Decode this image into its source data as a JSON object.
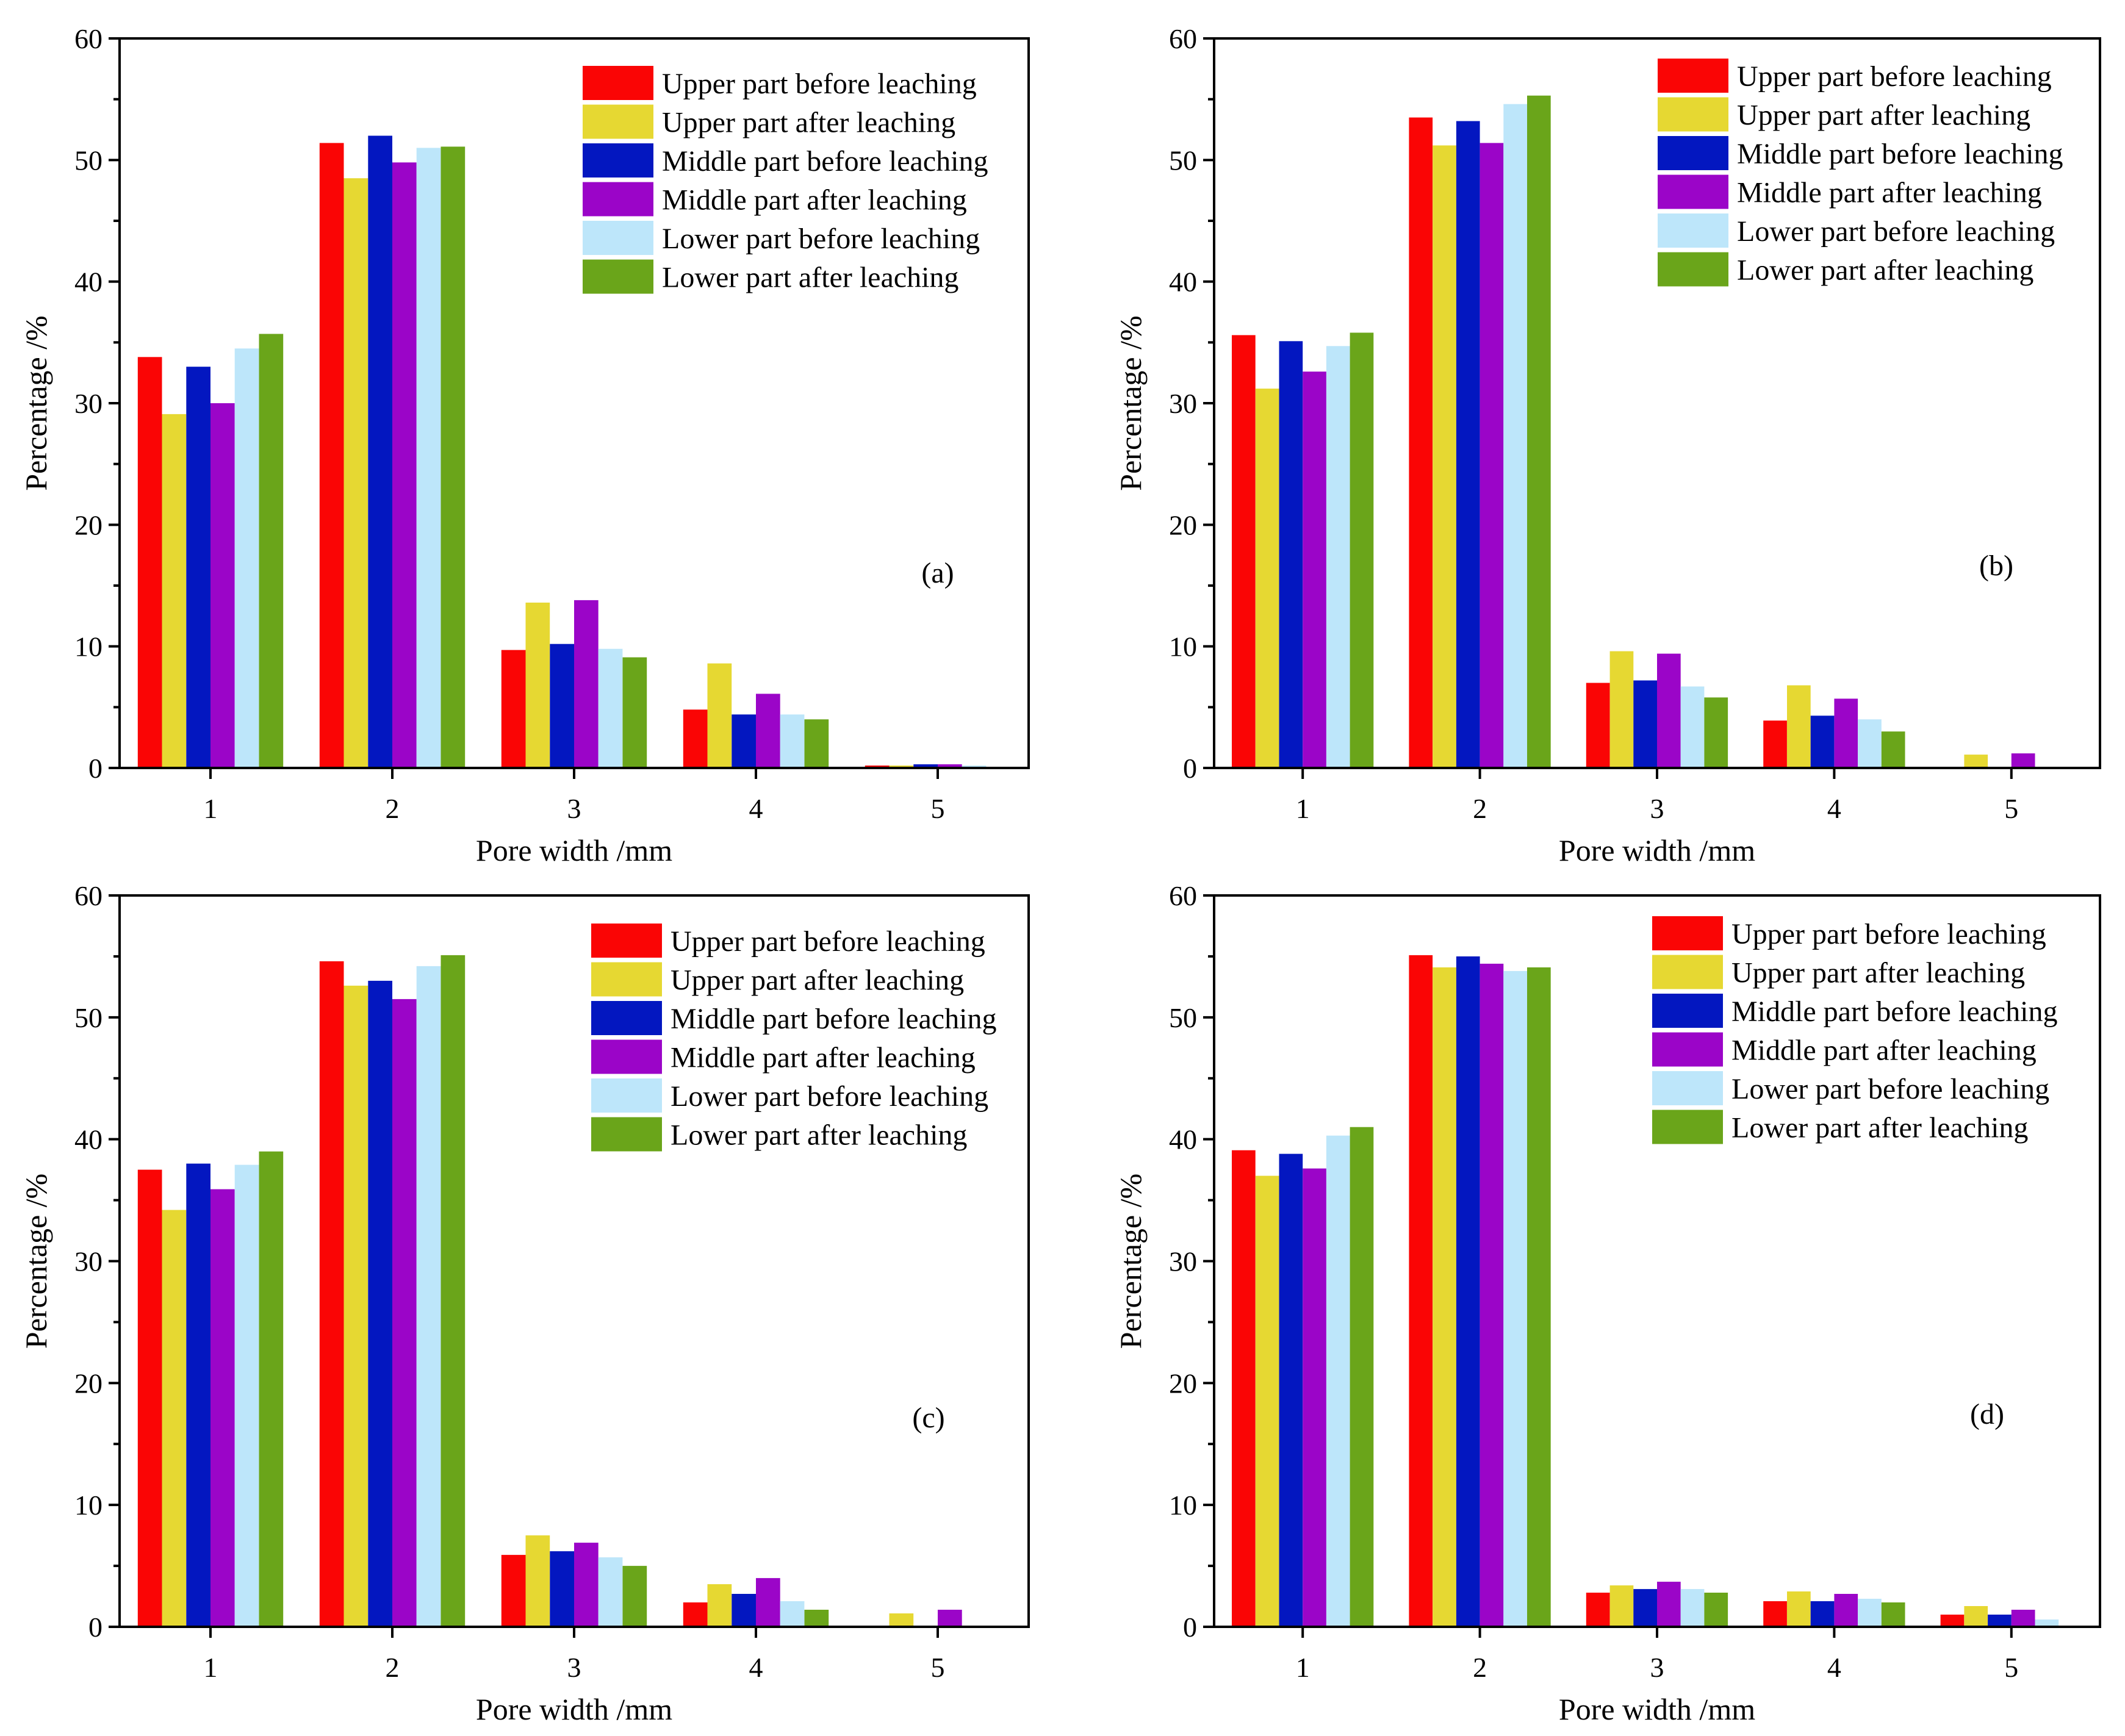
{
  "figure": {
    "series_names": [
      "Upper part before leaching",
      "Upper part after leaching",
      "Middle part before leaching",
      "Middle part after leaching",
      "Lower part before leaching",
      "Lower part after leaching"
    ],
    "series_colors": [
      "#fa0505",
      "#e6d832",
      "#0317c0",
      "#9b05c8",
      "#bde6fa",
      "#6aa51a"
    ]
  },
  "chart_data": [
    {
      "type": "bar",
      "panel_label": "(a)",
      "xlabel": "Pore width /mm",
      "ylabel": "Percentage /%",
      "categories": [
        "1",
        "2",
        "3",
        "4",
        "5"
      ],
      "ylim": [
        0,
        60
      ],
      "yticks": [
        "0",
        "10",
        "20",
        "30",
        "40",
        "50",
        "60"
      ],
      "legend_position": "top-right",
      "series": [
        {
          "name": "Upper part before leaching",
          "values": [
            33.8,
            51.4,
            9.7,
            4.8,
            0.2
          ]
        },
        {
          "name": "Upper part after leaching",
          "values": [
            29.1,
            48.5,
            13.6,
            8.6,
            0.2
          ]
        },
        {
          "name": "Middle part before leaching",
          "values": [
            33.0,
            52.0,
            10.2,
            4.4,
            0.3
          ]
        },
        {
          "name": "Middle part after leaching",
          "values": [
            30.0,
            49.8,
            13.8,
            6.1,
            0.3
          ]
        },
        {
          "name": "Lower part before leaching",
          "values": [
            34.5,
            51.0,
            9.8,
            4.4,
            0.2
          ]
        },
        {
          "name": "Lower part after leaching",
          "values": [
            35.7,
            51.1,
            9.1,
            4.0,
            0.1
          ]
        }
      ]
    },
    {
      "type": "bar",
      "panel_label": "(b)",
      "xlabel": "Pore width /mm",
      "ylabel": "Percentage /%",
      "categories": [
        "1",
        "2",
        "3",
        "4",
        "5"
      ],
      "ylim": [
        0,
        60
      ],
      "yticks": [
        "0",
        "10",
        "20",
        "30",
        "40",
        "50",
        "60"
      ],
      "legend_position": "top-right",
      "series": [
        {
          "name": "Upper part before leaching",
          "values": [
            35.6,
            53.5,
            7.0,
            3.9,
            0.0
          ]
        },
        {
          "name": "Upper part after leaching",
          "values": [
            31.2,
            51.2,
            9.6,
            6.8,
            1.1
          ]
        },
        {
          "name": "Middle part before leaching",
          "values": [
            35.1,
            53.2,
            7.2,
            4.3,
            0.0
          ]
        },
        {
          "name": "Middle part after leaching",
          "values": [
            32.6,
            51.4,
            9.4,
            5.7,
            1.2
          ]
        },
        {
          "name": "Lower part before leaching",
          "values": [
            34.7,
            54.6,
            6.7,
            4.0,
            0.0
          ]
        },
        {
          "name": "Lower part after leaching",
          "values": [
            35.8,
            55.3,
            5.8,
            3.0,
            0.0
          ]
        }
      ]
    },
    {
      "type": "bar",
      "panel_label": "(c)",
      "xlabel": "Pore width /mm",
      "ylabel": "Percentage /%",
      "categories": [
        "1",
        "2",
        "3",
        "4",
        "5"
      ],
      "ylim": [
        0,
        60
      ],
      "yticks": [
        "0",
        "10",
        "20",
        "30",
        "40",
        "50",
        "60"
      ],
      "legend_position": "top-right",
      "series": [
        {
          "name": "Upper part before leaching",
          "values": [
            37.5,
            54.6,
            5.9,
            2.0,
            0.0
          ]
        },
        {
          "name": "Upper part after leaching",
          "values": [
            34.2,
            52.6,
            7.5,
            3.5,
            1.1
          ]
        },
        {
          "name": "Middle part before leaching",
          "values": [
            38.0,
            53.0,
            6.2,
            2.7,
            0.0
          ]
        },
        {
          "name": "Middle part after leaching",
          "values": [
            35.9,
            51.5,
            6.9,
            4.0,
            1.4
          ]
        },
        {
          "name": "Lower part before leaching",
          "values": [
            37.9,
            54.2,
            5.7,
            2.1,
            0.0
          ]
        },
        {
          "name": "Lower part after leaching",
          "values": [
            39.0,
            55.1,
            5.0,
            1.4,
            0.0
          ]
        }
      ]
    },
    {
      "type": "bar",
      "panel_label": "(d)",
      "xlabel": "Pore width /mm",
      "ylabel": "Percentage /%",
      "categories": [
        "1",
        "2",
        "3",
        "4",
        "5"
      ],
      "ylim": [
        0,
        60
      ],
      "yticks": [
        "0",
        "10",
        "20",
        "30",
        "40",
        "50",
        "60"
      ],
      "legend_position": "top-right",
      "series": [
        {
          "name": "Upper part before leaching",
          "values": [
            39.1,
            55.1,
            2.8,
            2.1,
            1.0
          ]
        },
        {
          "name": "Upper part after leaching",
          "values": [
            37.0,
            54.1,
            3.4,
            2.9,
            1.7
          ]
        },
        {
          "name": "Middle part before leaching",
          "values": [
            38.8,
            55.0,
            3.1,
            2.1,
            1.0
          ]
        },
        {
          "name": "Middle part after leaching",
          "values": [
            37.6,
            54.4,
            3.7,
            2.7,
            1.4
          ]
        },
        {
          "name": "Lower part before leaching",
          "values": [
            40.3,
            53.8,
            3.1,
            2.3,
            0.6
          ]
        },
        {
          "name": "Lower part after leaching",
          "values": [
            41.0,
            54.1,
            2.8,
            2.0,
            0.0
          ]
        }
      ]
    }
  ]
}
